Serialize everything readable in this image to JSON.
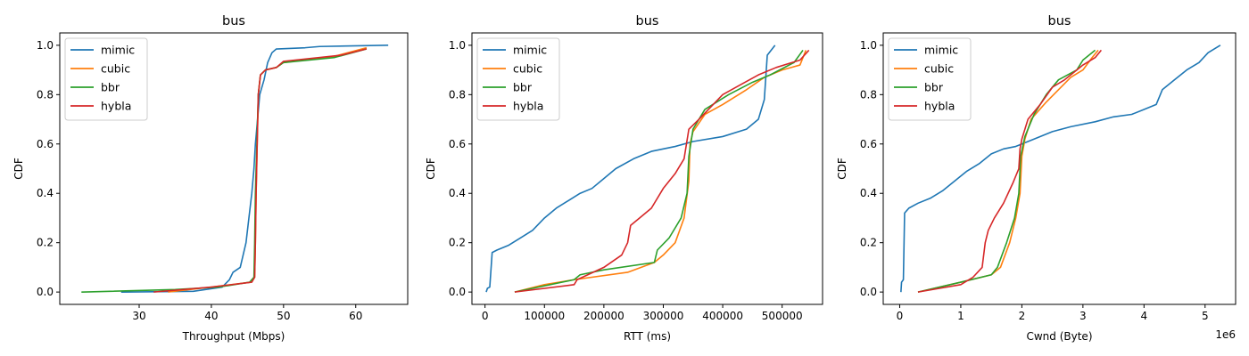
{
  "chart_data": [
    {
      "type": "line",
      "title": "bus",
      "xlabel": "Throughput (Mbps)",
      "ylabel": "CDF",
      "xlim": [
        19,
        67.2
      ],
      "ylim": [
        -0.05,
        1.05
      ],
      "xticks": [
        30,
        40,
        50,
        60
      ],
      "xtick_labels": [
        "30",
        "40",
        "50",
        "60"
      ],
      "yticks": [
        0.0,
        0.2,
        0.4,
        0.6,
        0.8,
        1.0
      ],
      "ytick_labels": [
        "0.0",
        "0.2",
        "0.4",
        "0.6",
        "0.8",
        "1.0"
      ],
      "legend": "upper-left",
      "offset_text": "",
      "series": [
        {
          "name": "mimic",
          "color": "#1f77b4",
          "points": [
            [
              27.5,
              0.0
            ],
            [
              37.5,
              0.003
            ],
            [
              41.5,
              0.02
            ],
            [
              42.5,
              0.05
            ],
            [
              43,
              0.08
            ],
            [
              44,
              0.1
            ],
            [
              44.8,
              0.2
            ],
            [
              45.2,
              0.3
            ],
            [
              45.6,
              0.4
            ],
            [
              45.9,
              0.5
            ],
            [
              46.1,
              0.6
            ],
            [
              46.4,
              0.7
            ],
            [
              46.7,
              0.8
            ],
            [
              47.3,
              0.86
            ],
            [
              47.8,
              0.93
            ],
            [
              48.4,
              0.97
            ],
            [
              49,
              0.985
            ],
            [
              53,
              0.99
            ],
            [
              55,
              0.995
            ],
            [
              64.5,
              1.0
            ]
          ]
        },
        {
          "name": "cubic",
          "color": "#ff7f0e",
          "points": [
            [
              34,
              0.0
            ],
            [
              40,
              0.02
            ],
            [
              45.5,
              0.04
            ],
            [
              46.0,
              0.06
            ],
            [
              46.1,
              0.2
            ],
            [
              46.2,
              0.4
            ],
            [
              46.35,
              0.6
            ],
            [
              46.5,
              0.8
            ],
            [
              46.8,
              0.88
            ],
            [
              47.5,
              0.9
            ],
            [
              49,
              0.91
            ],
            [
              50,
              0.93
            ],
            [
              57,
              0.955
            ],
            [
              61.5,
              0.99
            ]
          ]
        },
        {
          "name": "bbr",
          "color": "#2ca02c",
          "points": [
            [
              22,
              0.0
            ],
            [
              35,
              0.01
            ],
            [
              41,
              0.02
            ],
            [
              45.3,
              0.04
            ],
            [
              45.9,
              0.06
            ],
            [
              46.0,
              0.2
            ],
            [
              46.1,
              0.4
            ],
            [
              46.3,
              0.6
            ],
            [
              46.5,
              0.8
            ],
            [
              46.8,
              0.88
            ],
            [
              47.5,
              0.9
            ],
            [
              49,
              0.91
            ],
            [
              50,
              0.93
            ],
            [
              57,
              0.95
            ],
            [
              61.5,
              0.985
            ]
          ]
        },
        {
          "name": "hybla",
          "color": "#d62728",
          "points": [
            [
              32,
              0.0
            ],
            [
              40,
              0.02
            ],
            [
              45.6,
              0.04
            ],
            [
              46.0,
              0.06
            ],
            [
              46.1,
              0.2
            ],
            [
              46.2,
              0.4
            ],
            [
              46.35,
              0.6
            ],
            [
              46.5,
              0.8
            ],
            [
              46.8,
              0.88
            ],
            [
              47.5,
              0.9
            ],
            [
              49,
              0.91
            ],
            [
              50,
              0.935
            ],
            [
              58,
              0.96
            ],
            [
              61.5,
              0.985
            ]
          ]
        }
      ]
    },
    {
      "type": "line",
      "title": "bus",
      "xlabel": "RTT (ms)",
      "ylabel": "CDF",
      "xlim": [
        -22000,
        568000
      ],
      "ylim": [
        -0.05,
        1.05
      ],
      "xticks": [
        0,
        100000,
        200000,
        300000,
        400000,
        500000
      ],
      "xtick_labels": [
        "0",
        "100000",
        "200000",
        "300000",
        "400000",
        "500000"
      ],
      "yticks": [
        0.0,
        0.2,
        0.4,
        0.6,
        0.8,
        1.0
      ],
      "ytick_labels": [
        "0.0",
        "0.2",
        "0.4",
        "0.6",
        "0.8",
        "1.0"
      ],
      "legend": "upper-left",
      "offset_text": "",
      "series": [
        {
          "name": "mimic",
          "color": "#1f77b4",
          "points": [
            [
              2000,
              0.0
            ],
            [
              4000,
              0.015
            ],
            [
              8000,
              0.02
            ],
            [
              12000,
              0.16
            ],
            [
              20000,
              0.17
            ],
            [
              40000,
              0.19
            ],
            [
              60000,
              0.22
            ],
            [
              80000,
              0.25
            ],
            [
              100000,
              0.3
            ],
            [
              120000,
              0.34
            ],
            [
              140000,
              0.37
            ],
            [
              160000,
              0.4
            ],
            [
              180000,
              0.42
            ],
            [
              200000,
              0.46
            ],
            [
              220000,
              0.5
            ],
            [
              250000,
              0.54
            ],
            [
              280000,
              0.57
            ],
            [
              320000,
              0.59
            ],
            [
              350000,
              0.61
            ],
            [
              400000,
              0.63
            ],
            [
              440000,
              0.66
            ],
            [
              460000,
              0.7
            ],
            [
              470000,
              0.78
            ],
            [
              475000,
              0.96
            ],
            [
              488000,
              1.0
            ]
          ]
        },
        {
          "name": "cubic",
          "color": "#ff7f0e",
          "points": [
            [
              50000,
              0.0
            ],
            [
              100000,
              0.03
            ],
            [
              150000,
              0.05
            ],
            [
              240000,
              0.08
            ],
            [
              285000,
              0.12
            ],
            [
              300000,
              0.15
            ],
            [
              320000,
              0.2
            ],
            [
              335000,
              0.3
            ],
            [
              343000,
              0.45
            ],
            [
              345000,
              0.6
            ],
            [
              350000,
              0.65
            ],
            [
              370000,
              0.72
            ],
            [
              400000,
              0.76
            ],
            [
              440000,
              0.82
            ],
            [
              470000,
              0.87
            ],
            [
              500000,
              0.9
            ],
            [
              530000,
              0.92
            ],
            [
              540000,
              0.98
            ]
          ]
        },
        {
          "name": "bbr",
          "color": "#2ca02c",
          "points": [
            [
              50000,
              0.0
            ],
            [
              150000,
              0.05
            ],
            [
              160000,
              0.07
            ],
            [
              200000,
              0.09
            ],
            [
              285000,
              0.12
            ],
            [
              290000,
              0.17
            ],
            [
              310000,
              0.22
            ],
            [
              330000,
              0.3
            ],
            [
              340000,
              0.4
            ],
            [
              343000,
              0.55
            ],
            [
              350000,
              0.66
            ],
            [
              370000,
              0.74
            ],
            [
              410000,
              0.8
            ],
            [
              450000,
              0.85
            ],
            [
              480000,
              0.88
            ],
            [
              520000,
              0.93
            ],
            [
              535000,
              0.98
            ]
          ]
        },
        {
          "name": "hybla",
          "color": "#d62728",
          "points": [
            [
              50000,
              0.0
            ],
            [
              150000,
              0.03
            ],
            [
              155000,
              0.05
            ],
            [
              200000,
              0.1
            ],
            [
              230000,
              0.15
            ],
            [
              240000,
              0.2
            ],
            [
              245000,
              0.27
            ],
            [
              260000,
              0.3
            ],
            [
              280000,
              0.34
            ],
            [
              300000,
              0.42
            ],
            [
              320000,
              0.48
            ],
            [
              335000,
              0.54
            ],
            [
              343000,
              0.66
            ],
            [
              360000,
              0.7
            ],
            [
              380000,
              0.75
            ],
            [
              400000,
              0.8
            ],
            [
              430000,
              0.84
            ],
            [
              460000,
              0.88
            ],
            [
              490000,
              0.91
            ],
            [
              530000,
              0.94
            ],
            [
              545000,
              0.98
            ]
          ]
        }
      ]
    },
    {
      "type": "line",
      "title": "bus",
      "xlabel": "Cwnd (Byte)",
      "ylabel": "CDF",
      "xlim": [
        -0.27,
        5.5
      ],
      "ylim": [
        -0.05,
        1.05
      ],
      "xticks": [
        0,
        1,
        2,
        3,
        4,
        5
      ],
      "xtick_labels": [
        "0",
        "1",
        "2",
        "3",
        "4",
        "5"
      ],
      "yticks": [
        0.0,
        0.2,
        0.4,
        0.6,
        0.8,
        1.0
      ],
      "ytick_labels": [
        "0.0",
        "0.2",
        "0.4",
        "0.6",
        "0.8",
        "1.0"
      ],
      "legend": "upper-left",
      "offset_text": "1e6",
      "series": [
        {
          "name": "mimic",
          "color": "#1f77b4",
          "points": [
            [
              0.02,
              0.0
            ],
            [
              0.03,
              0.04
            ],
            [
              0.06,
              0.05
            ],
            [
              0.08,
              0.32
            ],
            [
              0.15,
              0.34
            ],
            [
              0.3,
              0.36
            ],
            [
              0.5,
              0.38
            ],
            [
              0.7,
              0.41
            ],
            [
              0.9,
              0.45
            ],
            [
              1.1,
              0.49
            ],
            [
              1.3,
              0.52
            ],
            [
              1.5,
              0.56
            ],
            [
              1.7,
              0.58
            ],
            [
              1.9,
              0.59
            ],
            [
              2.2,
              0.62
            ],
            [
              2.5,
              0.65
            ],
            [
              2.8,
              0.67
            ],
            [
              3.2,
              0.69
            ],
            [
              3.5,
              0.71
            ],
            [
              3.8,
              0.72
            ],
            [
              4.0,
              0.74
            ],
            [
              4.2,
              0.76
            ],
            [
              4.3,
              0.82
            ],
            [
              4.5,
              0.86
            ],
            [
              4.7,
              0.9
            ],
            [
              4.9,
              0.93
            ],
            [
              5.05,
              0.97
            ],
            [
              5.25,
              1.0
            ]
          ]
        },
        {
          "name": "cubic",
          "color": "#ff7f0e",
          "points": [
            [
              0.3,
              0.0
            ],
            [
              1.0,
              0.04
            ],
            [
              1.5,
              0.07
            ],
            [
              1.65,
              0.1
            ],
            [
              1.8,
              0.2
            ],
            [
              1.9,
              0.3
            ],
            [
              1.97,
              0.4
            ],
            [
              2.0,
              0.55
            ],
            [
              2.05,
              0.62
            ],
            [
              2.15,
              0.7
            ],
            [
              2.4,
              0.77
            ],
            [
              2.6,
              0.82
            ],
            [
              2.8,
              0.87
            ],
            [
              3.0,
              0.9
            ],
            [
              3.15,
              0.95
            ],
            [
              3.25,
              0.98
            ]
          ]
        },
        {
          "name": "bbr",
          "color": "#2ca02c",
          "points": [
            [
              0.3,
              0.0
            ],
            [
              1.0,
              0.04
            ],
            [
              1.5,
              0.07
            ],
            [
              1.6,
              0.1
            ],
            [
              1.75,
              0.2
            ],
            [
              1.88,
              0.3
            ],
            [
              1.95,
              0.4
            ],
            [
              1.98,
              0.55
            ],
            [
              2.05,
              0.63
            ],
            [
              2.2,
              0.72
            ],
            [
              2.4,
              0.8
            ],
            [
              2.6,
              0.86
            ],
            [
              2.9,
              0.9
            ],
            [
              3.0,
              0.94
            ],
            [
              3.2,
              0.98
            ]
          ]
        },
        {
          "name": "hybla",
          "color": "#d62728",
          "points": [
            [
              0.3,
              0.0
            ],
            [
              1.0,
              0.03
            ],
            [
              1.2,
              0.06
            ],
            [
              1.35,
              0.1
            ],
            [
              1.4,
              0.2
            ],
            [
              1.45,
              0.25
            ],
            [
              1.55,
              0.3
            ],
            [
              1.7,
              0.36
            ],
            [
              1.85,
              0.44
            ],
            [
              1.95,
              0.5
            ],
            [
              1.97,
              0.58
            ],
            [
              2.0,
              0.62
            ],
            [
              2.1,
              0.7
            ],
            [
              2.3,
              0.76
            ],
            [
              2.5,
              0.83
            ],
            [
              2.7,
              0.86
            ],
            [
              2.9,
              0.9
            ],
            [
              3.0,
              0.92
            ],
            [
              3.2,
              0.95
            ],
            [
              3.3,
              0.98
            ]
          ]
        }
      ]
    }
  ]
}
